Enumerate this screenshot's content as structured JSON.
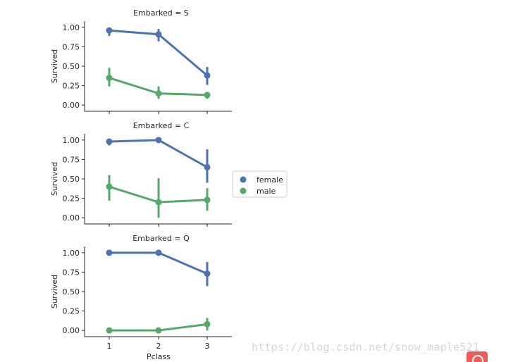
{
  "chart_data": {
    "type": "pointplot",
    "x_label": "Pclass",
    "y_label": "Survived",
    "categories": [
      "1",
      "2",
      "3"
    ],
    "ylim": [
      -0.08,
      1.08
    ],
    "y_ticks": [
      "0.00",
      "0.25",
      "0.50",
      "0.75",
      "1.00"
    ],
    "legend": [
      "female",
      "male"
    ],
    "colors": {
      "female": "#4c72b0",
      "male": "#55a868"
    },
    "panels": [
      {
        "title": "Embarked = S",
        "series": [
          {
            "name": "female",
            "values": [
              0.96,
              0.91,
              0.38
            ],
            "ci": [
              [
                0.89,
                1.0
              ],
              [
                0.82,
                0.98
              ],
              [
                0.26,
                0.49
              ]
            ]
          },
          {
            "name": "male",
            "values": [
              0.35,
              0.15,
              0.13
            ],
            "ci": [
              [
                0.24,
                0.48
              ],
              [
                0.08,
                0.24
              ],
              [
                0.08,
                0.17
              ]
            ]
          }
        ]
      },
      {
        "title": "Embarked = C",
        "series": [
          {
            "name": "female",
            "values": [
              0.98,
              1.0,
              0.65
            ],
            "ci": [
              [
                0.93,
                1.0
              ],
              [
                1.0,
                1.0
              ],
              [
                0.45,
                0.88
              ]
            ]
          },
          {
            "name": "male",
            "values": [
              0.4,
              0.2,
              0.23
            ],
            "ci": [
              [
                0.22,
                0.55
              ],
              [
                0.0,
                0.51
              ],
              [
                0.09,
                0.38
              ]
            ]
          }
        ]
      },
      {
        "title": "Embarked = Q",
        "series": [
          {
            "name": "female",
            "values": [
              1.0,
              1.0,
              0.73
            ],
            "ci": [
              [
                1.0,
                1.0
              ],
              [
                1.0,
                1.0
              ],
              [
                0.57,
                0.88
              ]
            ]
          },
          {
            "name": "male",
            "values": [
              0.0,
              0.0,
              0.08
            ],
            "ci": [
              [
                0.0,
                0.0
              ],
              [
                0.0,
                0.0
              ],
              [
                0.0,
                0.16
              ]
            ]
          }
        ]
      }
    ]
  },
  "watermark": "https://blog.csdn.net/snow_maple521"
}
